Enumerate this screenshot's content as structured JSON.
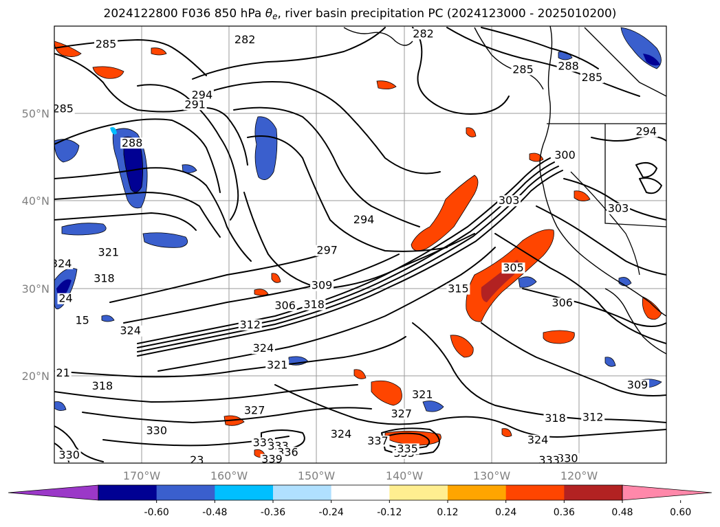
{
  "title": {
    "prefix": "2024122800 F036 850 hPa ",
    "theta": "θ",
    "theta_sub": "e",
    "suffix": ", river basin precipitation PC (2024123000 - 2025010200)"
  },
  "map": {
    "lat_labels": [
      "50°N",
      "40°N",
      "30°N",
      "20°N"
    ],
    "lon_labels": [
      "170°W",
      "160°W",
      "150°W",
      "140°W",
      "130°W",
      "120°W"
    ]
  },
  "contour_labels": [
    {
      "v": "282",
      "lon": -158.2,
      "lat": 58.1
    },
    {
      "v": "282",
      "lon": -137.8,
      "lat": 58.8
    },
    {
      "v": "285",
      "lon": -174.1,
      "lat": 57.6
    },
    {
      "v": "285",
      "lon": -179.0,
      "lat": 50.2
    },
    {
      "v": "285",
      "lon": -126.4,
      "lat": 54.7
    },
    {
      "v": "285",
      "lon": -118.5,
      "lat": 53.8
    },
    {
      "v": "288",
      "lon": -171.1,
      "lat": 46.3
    },
    {
      "v": "288",
      "lon": -121.2,
      "lat": 55.1
    },
    {
      "v": "291",
      "lon": -163.9,
      "lat": 50.7
    },
    {
      "v": "294",
      "lon": -163.1,
      "lat": 51.8
    },
    {
      "v": "294",
      "lon": -144.6,
      "lat": 37.5
    },
    {
      "v": "294",
      "lon": -112.3,
      "lat": 47.6
    },
    {
      "v": "297",
      "lon": -148.8,
      "lat": 34.0
    },
    {
      "v": "300",
      "lon": -121.6,
      "lat": 44.9
    },
    {
      "v": "303",
      "lon": -128.0,
      "lat": 39.7
    },
    {
      "v": "303",
      "lon": -115.5,
      "lat": 38.8
    },
    {
      "v": "305",
      "lon": -127.5,
      "lat": 32.0
    },
    {
      "v": "306",
      "lon": -121.9,
      "lat": 28.0
    },
    {
      "v": "306",
      "lon": -153.6,
      "lat": 27.7
    },
    {
      "v": "309",
      "lon": -149.4,
      "lat": 30.0
    },
    {
      "v": "309",
      "lon": -113.3,
      "lat": 18.6
    },
    {
      "v": "312",
      "lon": -157.6,
      "lat": 25.5
    },
    {
      "v": "312",
      "lon": -118.4,
      "lat": 14.9
    },
    {
      "v": "315",
      "lon": -133.8,
      "lat": 29.6
    },
    {
      "v": "318",
      "lon": -150.3,
      "lat": 27.8
    },
    {
      "v": "318",
      "lon": -174.3,
      "lat": 30.8
    },
    {
      "v": "318",
      "lon": -174.5,
      "lat": 18.5
    },
    {
      "v": "318",
      "lon": -122.7,
      "lat": 14.8
    },
    {
      "v": "321",
      "lon": -173.8,
      "lat": 33.8
    },
    {
      "v": "321",
      "lon": -154.5,
      "lat": 20.9
    },
    {
      "v": "321",
      "lon": -137.9,
      "lat": 17.5
    },
    {
      "v": "324",
      "lon": -179.2,
      "lat": 32.5
    },
    {
      "v": "324",
      "lon": -156.1,
      "lat": 22.8
    },
    {
      "v": "324",
      "lon": -171.3,
      "lat": 24.8
    },
    {
      "v": "324",
      "lon": -147.2,
      "lat": 13.0
    },
    {
      "v": "324",
      "lon": -124.7,
      "lat": 12.3
    },
    {
      "v": "327",
      "lon": -157.1,
      "lat": 15.7
    },
    {
      "v": "327",
      "lon": -140.3,
      "lat": 15.3
    },
    {
      "v": "330",
      "lon": -168.3,
      "lat": 13.4
    },
    {
      "v": "330",
      "lon": -178.3,
      "lat": 10.6
    },
    {
      "v": "330",
      "lon": -121.3,
      "lat": 10.2
    },
    {
      "v": "330",
      "lon": -156.1,
      "lat": 12.0
    },
    {
      "v": "333",
      "lon": -154.4,
      "lat": 11.6
    },
    {
      "v": "336",
      "lon": -153.3,
      "lat": 10.9
    },
    {
      "v": "339",
      "lon": -155.1,
      "lat": 10.1
    },
    {
      "v": "337",
      "lon": -143.0,
      "lat": 12.2
    },
    {
      "v": "333",
      "lon": -140.0,
      "lat": 10.8
    },
    {
      "v": "335",
      "lon": -139.6,
      "lat": 11.3
    },
    {
      "v": "333",
      "lon": -123.4,
      "lat": 10.0
    },
    {
      "v": "23",
      "lon": -163.7,
      "lat": 10.0
    },
    {
      "v": "21",
      "lon": -179.0,
      "lat": 20.0
    },
    {
      "v": "15",
      "lon": -176.8,
      "lat": 26.0
    },
    {
      "v": "24",
      "lon": -178.7,
      "lat": 28.5
    }
  ],
  "colorbar": {
    "levels": [
      "-0.60",
      "-0.48",
      "-0.36",
      "-0.24",
      "-0.12",
      "0.12",
      "0.24",
      "0.36",
      "0.48",
      "0.60"
    ],
    "colors": [
      "#9b38c8",
      "#010193",
      "#3a5fcd",
      "#00bfff",
      "#b0e0ff",
      "#ffffff",
      "#ffee90",
      "#ffa500",
      "#ff4500",
      "#b22222",
      "#ff88aa"
    ]
  }
}
